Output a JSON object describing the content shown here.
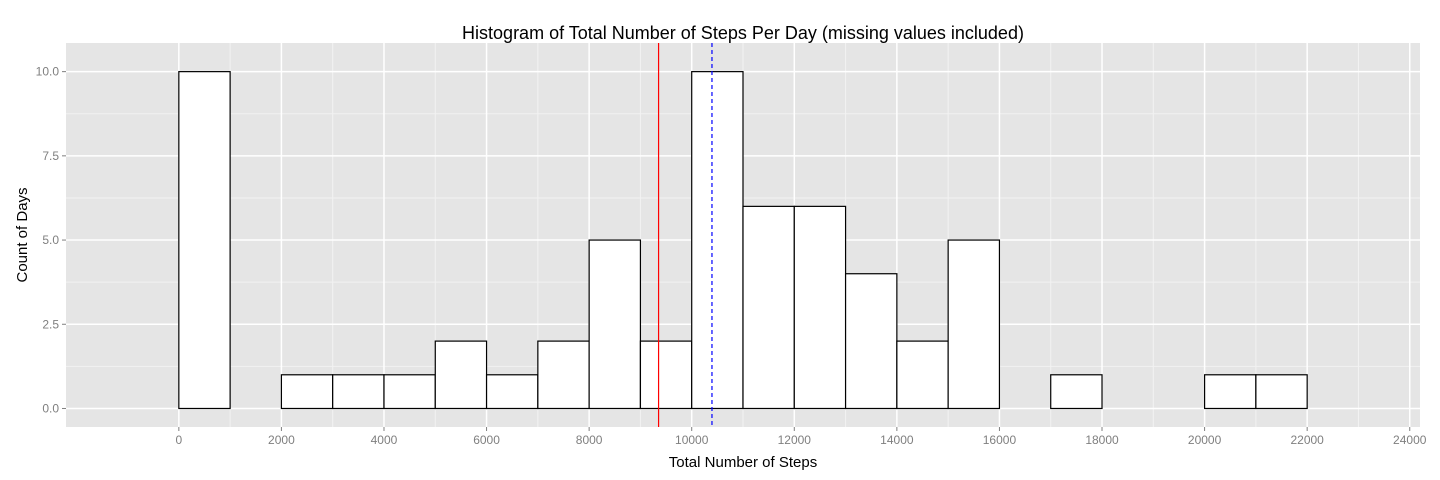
{
  "chart_data": {
    "type": "bar",
    "title": "Histogram of Total Number of Steps Per Day (missing values included)",
    "xlabel": "Total Number of Steps",
    "ylabel": "Count of Days",
    "xlim": [
      -2200,
      24200
    ],
    "ylim": [
      -0.55,
      10.85
    ],
    "x_ticks": [
      0,
      2000,
      4000,
      6000,
      8000,
      10000,
      12000,
      14000,
      16000,
      18000,
      20000,
      22000,
      24000
    ],
    "x_tick_labels": [
      "0",
      "2000",
      "4000",
      "6000",
      "8000",
      "10000",
      "12000",
      "14000",
      "16000",
      "18000",
      "20000",
      "22000",
      "24000"
    ],
    "y_ticks": [
      0,
      2.5,
      5,
      7.5,
      10
    ],
    "y_tick_labels": [
      "0.0",
      "2.5",
      "5.0",
      "7.5",
      "10.0"
    ],
    "bin_width": 1000,
    "bins": [
      {
        "start": -1000,
        "end": 0,
        "count": 0
      },
      {
        "start": 0,
        "end": 1000,
        "count": 10
      },
      {
        "start": 1000,
        "end": 2000,
        "count": 0
      },
      {
        "start": 2000,
        "end": 3000,
        "count": 1
      },
      {
        "start": 3000,
        "end": 4000,
        "count": 1
      },
      {
        "start": 4000,
        "end": 5000,
        "count": 1
      },
      {
        "start": 5000,
        "end": 6000,
        "count": 2
      },
      {
        "start": 6000,
        "end": 7000,
        "count": 1
      },
      {
        "start": 7000,
        "end": 8000,
        "count": 2
      },
      {
        "start": 8000,
        "end": 9000,
        "count": 5
      },
      {
        "start": 9000,
        "end": 10000,
        "count": 2
      },
      {
        "start": 10000,
        "end": 11000,
        "count": 10
      },
      {
        "start": 11000,
        "end": 12000,
        "count": 6
      },
      {
        "start": 12000,
        "end": 13000,
        "count": 6
      },
      {
        "start": 13000,
        "end": 14000,
        "count": 4
      },
      {
        "start": 14000,
        "end": 15000,
        "count": 2
      },
      {
        "start": 15000,
        "end": 16000,
        "count": 5
      },
      {
        "start": 16000,
        "end": 17000,
        "count": 0
      },
      {
        "start": 17000,
        "end": 18000,
        "count": 1
      },
      {
        "start": 18000,
        "end": 19000,
        "count": 0
      },
      {
        "start": 19000,
        "end": 20000,
        "count": 0
      },
      {
        "start": 20000,
        "end": 21000,
        "count": 1
      },
      {
        "start": 21000,
        "end": 22000,
        "count": 1
      },
      {
        "start": 22000,
        "end": 23000,
        "count": 0
      }
    ],
    "vlines": [
      {
        "value": 9354,
        "color": "#ff0000",
        "style": "solid"
      },
      {
        "value": 10395,
        "color": "#0000ff",
        "style": "dashed"
      }
    ],
    "grid": true,
    "colors": {
      "panel_background": "#e5e5e5",
      "grid_major": "#ffffff",
      "grid_minor": "#f2f2f2",
      "bar_fill": "#ffffff",
      "bar_outline": "#000000"
    }
  }
}
